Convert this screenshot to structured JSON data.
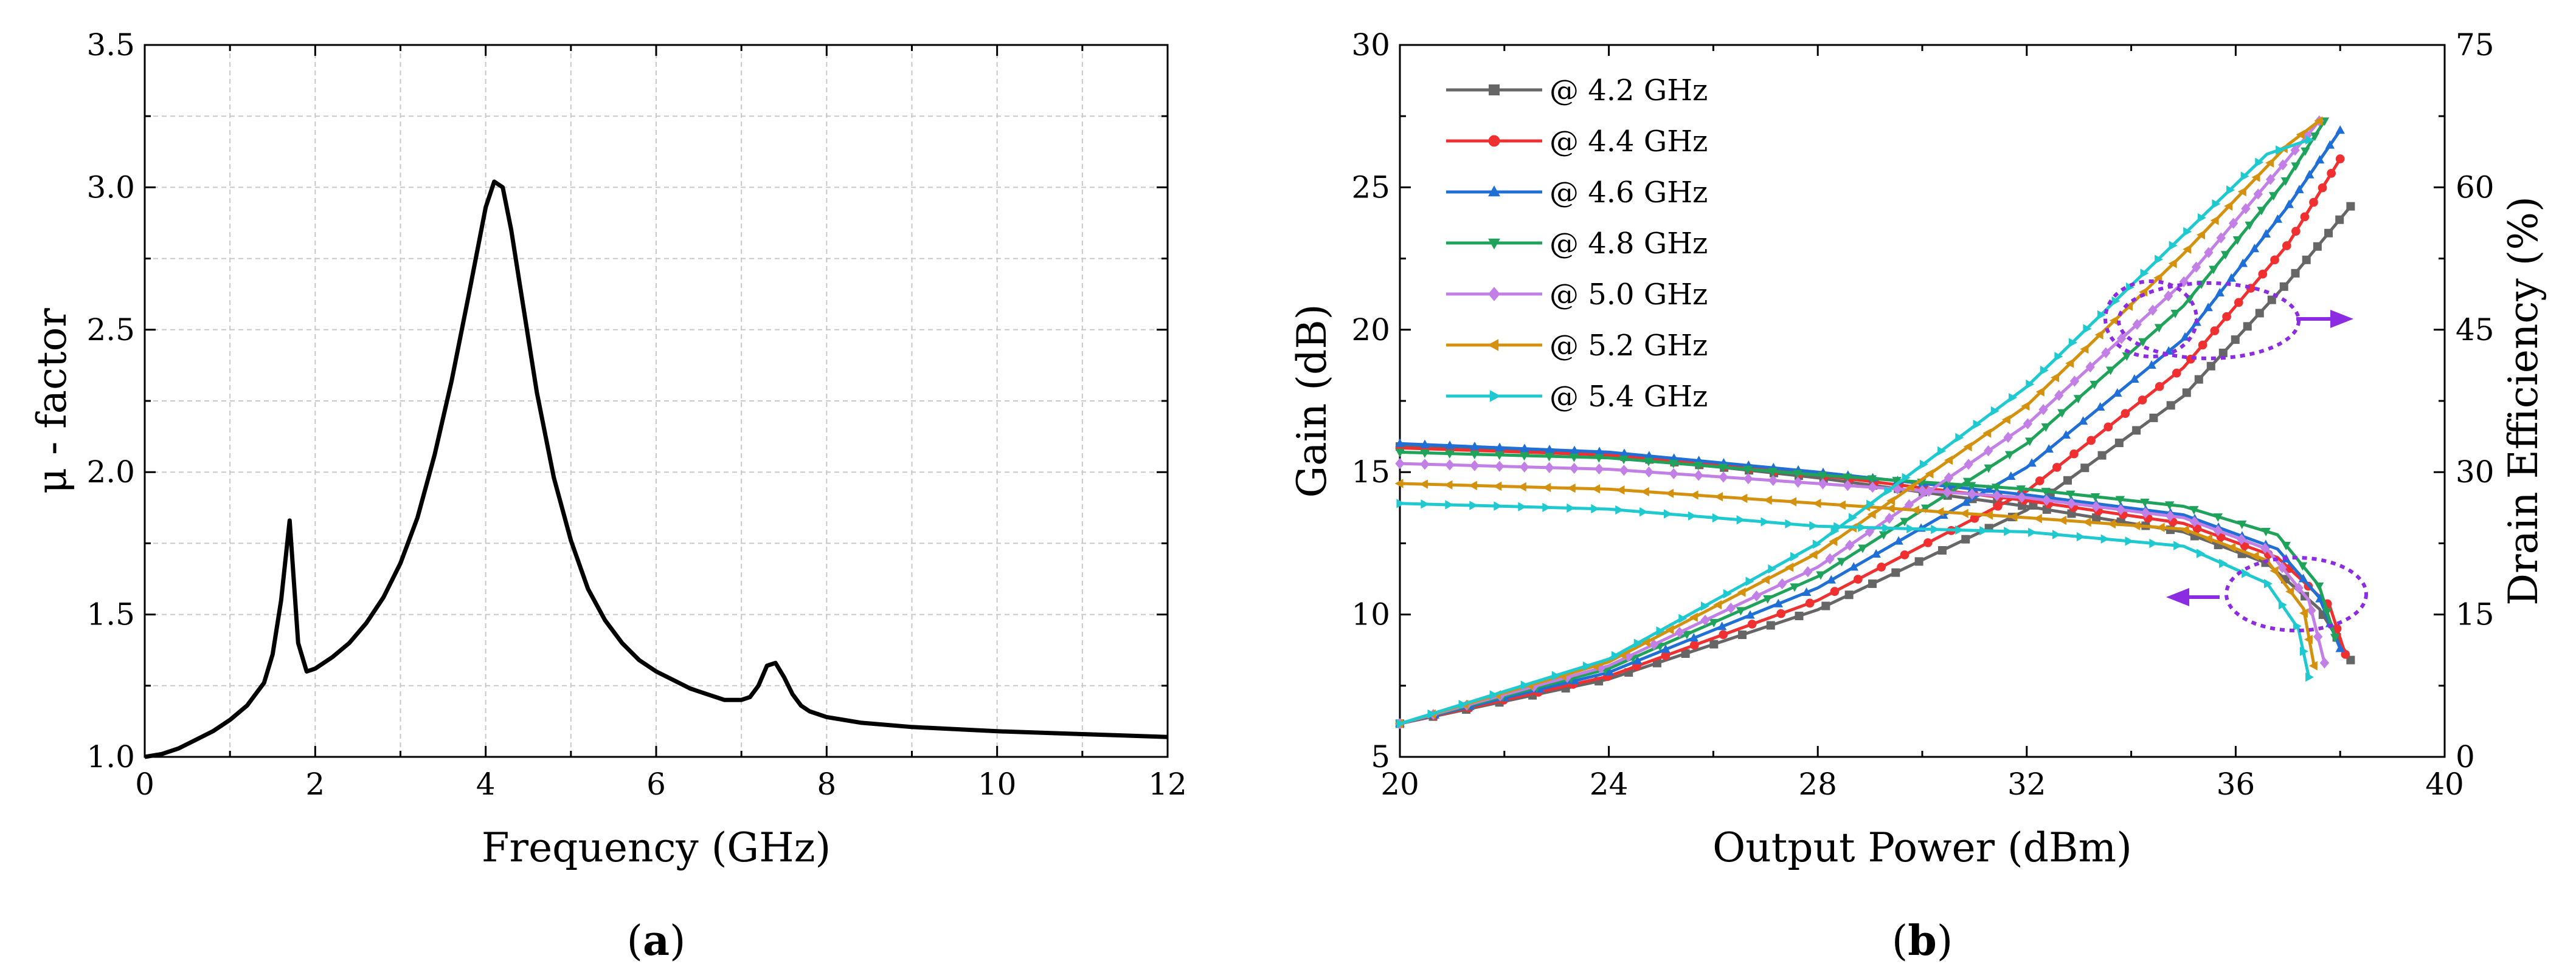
{
  "chart_data": [
    {
      "type": "line",
      "panel_label": "a",
      "xlabel": "Frequency (GHz)",
      "ylabel": "μ - factor",
      "xlim": [
        0,
        12
      ],
      "ylim": [
        1.0,
        3.5
      ],
      "xticks": [
        "0",
        "2",
        "4",
        "6",
        "8",
        "10",
        "12"
      ],
      "yticks": [
        "1.0",
        "1.5",
        "2.0",
        "2.5",
        "3.0",
        "3.5"
      ],
      "grid": true,
      "series": [
        {
          "color": "#000000",
          "x": [
            0.0,
            0.2,
            0.4,
            0.6,
            0.8,
            1.0,
            1.2,
            1.4,
            1.5,
            1.6,
            1.7,
            1.8,
            1.9,
            2.0,
            2.2,
            2.4,
            2.6,
            2.8,
            3.0,
            3.2,
            3.4,
            3.6,
            3.8,
            4.0,
            4.1,
            4.2,
            4.3,
            4.4,
            4.6,
            4.8,
            5.0,
            5.2,
            5.4,
            5.6,
            5.8,
            6.0,
            6.2,
            6.4,
            6.6,
            6.8,
            7.0,
            7.1,
            7.2,
            7.3,
            7.4,
            7.5,
            7.6,
            7.7,
            7.8,
            8.0,
            8.4,
            9.0,
            10.0,
            11.0,
            12.0
          ],
          "y": [
            1.0,
            1.01,
            1.03,
            1.06,
            1.09,
            1.13,
            1.18,
            1.26,
            1.36,
            1.55,
            1.83,
            1.4,
            1.3,
            1.31,
            1.35,
            1.4,
            1.47,
            1.56,
            1.68,
            1.84,
            2.06,
            2.32,
            2.62,
            2.93,
            3.02,
            3.0,
            2.85,
            2.66,
            2.28,
            1.98,
            1.76,
            1.59,
            1.48,
            1.4,
            1.34,
            1.3,
            1.27,
            1.24,
            1.22,
            1.2,
            1.2,
            1.21,
            1.25,
            1.32,
            1.33,
            1.28,
            1.22,
            1.18,
            1.16,
            1.14,
            1.12,
            1.105,
            1.09,
            1.08,
            1.07
          ]
        }
      ]
    },
    {
      "type": "line",
      "panel_label": "b",
      "xlabel": "Output Power (dBm)",
      "ylabel": "Gain (dB)",
      "y2label": "Drain Efficiency (%)",
      "xlim": [
        20,
        40
      ],
      "ylim": [
        5,
        30
      ],
      "y2lim": [
        0,
        75
      ],
      "xticks": [
        "20",
        "24",
        "28",
        "32",
        "36",
        "40"
      ],
      "yticks": [
        "5",
        "10",
        "15",
        "20",
        "25",
        "30"
      ],
      "y2ticks": [
        "0",
        "15",
        "30",
        "45",
        "60",
        "75"
      ],
      "grid": false,
      "legend_position": "top-left",
      "markers": [
        "square",
        "circle",
        "triangle-up",
        "triangle-down",
        "diamond",
        "triangle-left",
        "triangle-right"
      ],
      "series": [
        {
          "name": "@ 4.2 GHz",
          "color": "#666666",
          "marker": "square",
          "gain_end": [
            38.2,
            8.4
          ],
          "gain": [
            [
              20,
              15.9
            ],
            [
              24,
              15.6
            ],
            [
              28,
              14.8
            ],
            [
              32,
              13.8
            ],
            [
              35,
              12.9
            ],
            [
              36.6,
              11.8
            ],
            [
              37.6,
              10.2
            ],
            [
              38.2,
              8.4
            ]
          ],
          "efficiency": [
            [
              20,
              3.5
            ],
            [
              24,
              8.2
            ],
            [
              28,
              15.5
            ],
            [
              32,
              26
            ],
            [
              35,
              38
            ],
            [
              37,
              50
            ],
            [
              38.2,
              58
            ]
          ]
        },
        {
          "name": "@ 4.4 GHz",
          "color": "#f03030",
          "marker": "circle",
          "gain": [
            [
              20,
              15.85
            ],
            [
              24,
              15.6
            ],
            [
              28,
              14.9
            ],
            [
              32,
              14.0
            ],
            [
              35,
              13.2
            ],
            [
              36.8,
              12.0
            ],
            [
              37.8,
              10.3
            ],
            [
              38.1,
              8.6
            ]
          ],
          "efficiency": [
            [
              20,
              3.5
            ],
            [
              24,
              8.5
            ],
            [
              28,
              16.5
            ],
            [
              32,
              28
            ],
            [
              35,
              41
            ],
            [
              37,
              54
            ],
            [
              38,
              63
            ]
          ]
        },
        {
          "name": "@ 4.6 GHz",
          "color": "#1f6fd6",
          "marker": "triangle-up",
          "gain": [
            [
              20,
              16.0
            ],
            [
              24,
              15.7
            ],
            [
              28,
              15.0
            ],
            [
              32,
              14.2
            ],
            [
              35,
              13.5
            ],
            [
              36.8,
              12.3
            ],
            [
              37.6,
              10.6
            ],
            [
              38.0,
              8.8
            ]
          ],
          "efficiency": [
            [
              20,
              3.5
            ],
            [
              24,
              8.9
            ],
            [
              28,
              17.8
            ],
            [
              32,
              30.5
            ],
            [
              35,
              44
            ],
            [
              37,
              58
            ],
            [
              38,
              66
            ]
          ]
        },
        {
          "name": "@ 4.8 GHz",
          "color": "#1fa35a",
          "marker": "triangle-down",
          "gain": [
            [
              20,
              15.7
            ],
            [
              24,
              15.5
            ],
            [
              28,
              14.9
            ],
            [
              32,
              14.4
            ],
            [
              35,
              13.8
            ],
            [
              36.8,
              12.8
            ],
            [
              37.6,
              11.0
            ],
            [
              37.9,
              9.2
            ]
          ],
          "efficiency": [
            [
              20,
              3.5
            ],
            [
              24,
              9.3
            ],
            [
              28,
              19
            ],
            [
              32,
              33
            ],
            [
              35,
              47.5
            ],
            [
              37,
              61
            ],
            [
              37.7,
              67
            ]
          ]
        },
        {
          "name": "@ 5.0 GHz",
          "color": "#c27fe6",
          "marker": "diamond",
          "gain": [
            [
              20,
              15.3
            ],
            [
              24,
              15.1
            ],
            [
              28,
              14.6
            ],
            [
              32,
              14.1
            ],
            [
              35,
              13.4
            ],
            [
              36.6,
              12.3
            ],
            [
              37.4,
              10.5
            ],
            [
              37.7,
              8.3
            ]
          ],
          "efficiency": [
            [
              20,
              3.5
            ],
            [
              24,
              9.6
            ],
            [
              28,
              20
            ],
            [
              32,
              35
            ],
            [
              35,
              50
            ],
            [
              37,
              63
            ],
            [
              37.6,
              67
            ]
          ]
        },
        {
          "name": "@ 5.2 GHz",
          "color": "#d4910d",
          "marker": "triangle-left",
          "gain": [
            [
              20,
              14.6
            ],
            [
              24,
              14.4
            ],
            [
              28,
              13.9
            ],
            [
              32,
              13.4
            ],
            [
              35,
              13.0
            ],
            [
              36.6,
              11.9
            ],
            [
              37.3,
              10.2
            ],
            [
              37.5,
              8.2
            ]
          ],
          "efficiency": [
            [
              20,
              3.5
            ],
            [
              24,
              10
            ],
            [
              28,
              21.5
            ],
            [
              32,
              37
            ],
            [
              35,
              53
            ],
            [
              37,
              64.5
            ],
            [
              37.6,
              67
            ]
          ]
        },
        {
          "name": "@ 5.4 GHz",
          "color": "#1ec9cf",
          "marker": "triangle-right",
          "gain": [
            [
              20,
              13.9
            ],
            [
              24,
              13.7
            ],
            [
              28,
              13.1
            ],
            [
              32,
              12.9
            ],
            [
              35,
              12.4
            ],
            [
              36.6,
              11.1
            ],
            [
              37.2,
              9.5
            ],
            [
              37.4,
              7.8
            ]
          ],
          "efficiency": [
            [
              20,
              3.5
            ],
            [
              24,
              10.3
            ],
            [
              28,
              22.5
            ],
            [
              32,
              39
            ],
            [
              35,
              55
            ],
            [
              36.6,
              63.5
            ],
            [
              37.4,
              65
            ]
          ]
        }
      ]
    }
  ],
  "captions": {
    "a": "a",
    "b": "b",
    "open_paren": "(",
    "close_paren": ")"
  }
}
